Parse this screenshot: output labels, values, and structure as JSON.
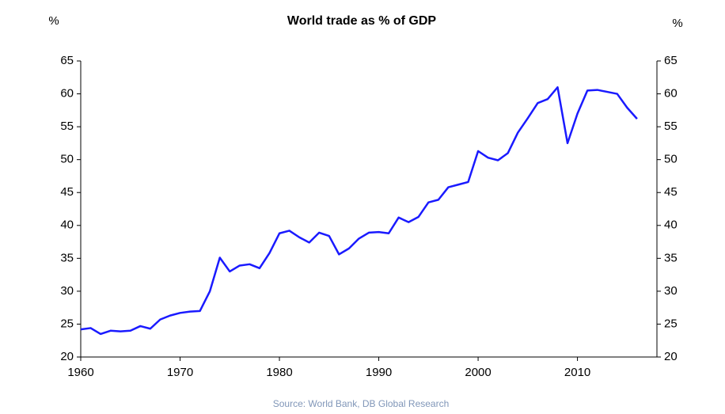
{
  "chart_data": {
    "type": "line",
    "title": "World trade as % of GDP",
    "y_label": "%",
    "y2_label": "%",
    "source": "Source: World Bank, DB Global Research",
    "x": [
      1960,
      1961,
      1962,
      1963,
      1964,
      1965,
      1966,
      1967,
      1968,
      1969,
      1970,
      1971,
      1972,
      1973,
      1974,
      1975,
      1976,
      1977,
      1978,
      1979,
      1980,
      1981,
      1982,
      1983,
      1984,
      1985,
      1986,
      1987,
      1988,
      1989,
      1990,
      1991,
      1992,
      1993,
      1994,
      1995,
      1996,
      1997,
      1998,
      1999,
      2000,
      2001,
      2002,
      2003,
      2004,
      2005,
      2006,
      2007,
      2008,
      2009,
      2010,
      2011,
      2012,
      2013,
      2014,
      2015,
      2016
    ],
    "series": [
      {
        "color": "#1a1aff",
        "values": [
          24.2,
          24.4,
          23.5,
          24.0,
          23.9,
          24.0,
          24.7,
          24.3,
          25.7,
          26.3,
          26.7,
          26.9,
          27.0,
          30.0,
          35.1,
          33.0,
          33.9,
          34.1,
          33.5,
          35.8,
          38.8,
          39.2,
          38.2,
          37.4,
          38.9,
          38.4,
          35.6,
          36.5,
          38.0,
          38.9,
          39.0,
          38.8,
          41.2,
          40.5,
          41.3,
          43.5,
          43.9,
          45.8,
          46.2,
          46.6,
          51.3,
          50.3,
          49.9,
          51.0,
          54.1,
          56.3,
          58.6,
          59.2,
          61.0,
          52.5,
          57.0,
          60.5,
          60.6,
          60.3,
          60.0,
          57.9,
          56.2
        ]
      }
    ],
    "xlim": [
      1960,
      2018
    ],
    "xticks": [
      1960,
      1970,
      1980,
      1990,
      2000,
      2010
    ],
    "ylim": [
      20,
      65
    ],
    "yticks": [
      20,
      25,
      30,
      35,
      40,
      45,
      50,
      55,
      60,
      65
    ],
    "y2lim": [
      20,
      65
    ],
    "y2ticks": [
      20,
      25,
      30,
      35,
      40,
      45,
      50,
      55,
      60,
      65
    ],
    "grid": false
  }
}
